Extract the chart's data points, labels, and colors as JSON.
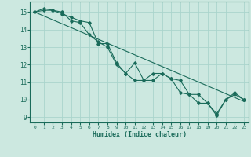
{
  "xlabel": "Humidex (Indice chaleur)",
  "ylabel": "",
  "background_color": "#cce8e0",
  "grid_color": "#aad4cc",
  "line_color": "#1a6b5a",
  "xlim": [
    -0.5,
    23.5
  ],
  "ylim": [
    8.7,
    15.6
  ],
  "yticks": [
    9,
    10,
    11,
    12,
    13,
    14,
    15
  ],
  "xticks": [
    0,
    1,
    2,
    3,
    4,
    5,
    6,
    7,
    8,
    9,
    10,
    11,
    12,
    13,
    14,
    15,
    16,
    17,
    18,
    19,
    20,
    21,
    22,
    23
  ],
  "line1_x": [
    0,
    1,
    2,
    3,
    4,
    5,
    6,
    7,
    8,
    9,
    10,
    11,
    12,
    13,
    14,
    15,
    16,
    17,
    18,
    19,
    20,
    21,
    22,
    23
  ],
  "line1_y": [
    15.0,
    15.2,
    15.1,
    15.0,
    14.5,
    14.4,
    13.7,
    13.3,
    13.0,
    12.0,
    11.5,
    12.1,
    11.1,
    11.1,
    11.5,
    11.2,
    11.1,
    10.3,
    9.8,
    9.8,
    9.1,
    10.0,
    10.3,
    10.0
  ],
  "line2_x": [
    0,
    1,
    2,
    3,
    4,
    5,
    6,
    7,
    8,
    9,
    10,
    11,
    12,
    13,
    14,
    15,
    16,
    17,
    18,
    19,
    20,
    21,
    22,
    23
  ],
  "line2_y": [
    15.0,
    15.1,
    15.1,
    14.9,
    14.7,
    14.5,
    14.4,
    13.2,
    13.2,
    12.1,
    11.5,
    11.1,
    11.1,
    11.5,
    11.5,
    11.2,
    10.4,
    10.3,
    10.3,
    9.8,
    9.2,
    10.0,
    10.4,
    10.0
  ],
  "line3_x": [
    0,
    23
  ],
  "line3_y": [
    15.0,
    9.9
  ]
}
